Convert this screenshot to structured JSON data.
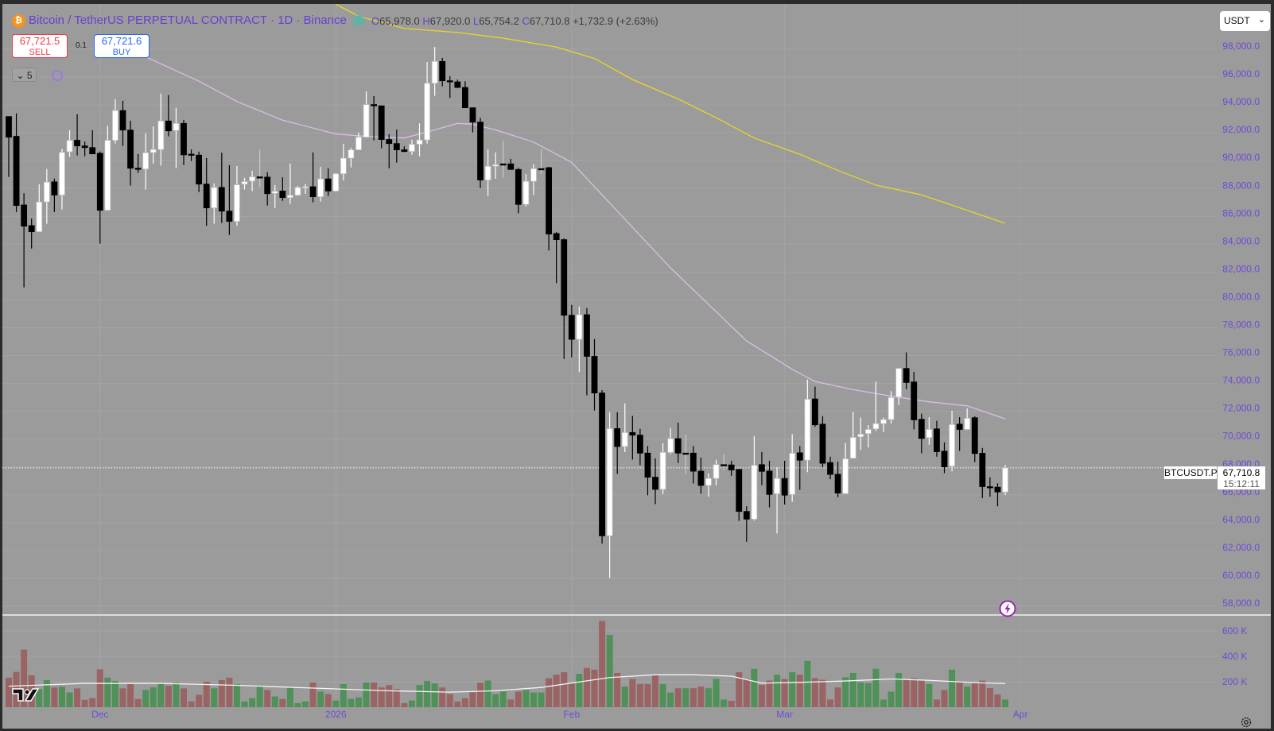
{
  "header": {
    "symbol_icon": "bitcoin-icon",
    "title": "Bitcoin / TetherUS PERPETUAL CONTRACT · 1D · Binance",
    "ohlc": {
      "o_label": "O",
      "o": "65,978.0",
      "h_label": "H",
      "h": "67,920.0",
      "l_label": "L",
      "l": "65,754.2",
      "c_label": "C",
      "c": "67,710.8",
      "change": "+1,732.9 (+2.63%)"
    },
    "sell": {
      "price": "67,721.5",
      "label": "SELL"
    },
    "buy": {
      "price": "67,721.6",
      "label": "BUY"
    },
    "quantity": "0.1",
    "collapse_label": "5",
    "currency": "USDT"
  },
  "last_price": {
    "symbol": "BTCUSDT.P",
    "price": "67,710.8",
    "countdown": "15:12:11",
    "value": 67710.8
  },
  "colors": {
    "background": "#9b9b9b",
    "axis_text": "#6f4bd6",
    "up_candle": "#ffffff",
    "down_candle": "#000000",
    "volume_up": "#4f9158",
    "volume_down": "#9a6464",
    "ma_fast": "#dcbde6",
    "ma_slow": "#e9d52a",
    "volume_ma": "#f4f4f4",
    "sell": "#f23645",
    "buy": "#2962ff"
  },
  "chart_data": {
    "type": "candlestick",
    "timeframe": "1D",
    "price_ticks": [
      "98,000.0",
      "96,000.0",
      "94,000.0",
      "92,000.0",
      "90,000.0",
      "88,000.0",
      "86,000.0",
      "84,000.0",
      "82,000.0",
      "80,000.0",
      "78,000.0",
      "76,000.0",
      "74,000.0",
      "72,000.0",
      "70,000.0",
      "68,000.0",
      "66,000.0",
      "64,000.0",
      "62,000.0",
      "60,000.0",
      "58,000.0"
    ],
    "price_tick_values": [
      98000,
      96000,
      94000,
      92000,
      90000,
      88000,
      86000,
      84000,
      82000,
      80000,
      78000,
      76000,
      74000,
      72000,
      70000,
      68000,
      66000,
      64000,
      62000,
      60000,
      58000
    ],
    "volume_ticks": [
      "600 K",
      "400 K",
      "200 K"
    ],
    "volume_tick_values": [
      600000,
      400000,
      200000
    ],
    "time_ticks": [
      {
        "label": "Dec",
        "date": "2025-12-01"
      },
      {
        "label": "2026",
        "date": "2026-01-01"
      },
      {
        "label": "Feb",
        "date": "2026-02-01"
      },
      {
        "label": "Mar",
        "date": "2026-03-01"
      },
      {
        "label": "Apr",
        "date": "2026-04-01"
      }
    ],
    "dates": [
      "2025-11-19",
      "2025-11-20",
      "2025-11-21",
      "2025-11-22",
      "2025-11-23",
      "2025-11-24",
      "2025-11-25",
      "2025-11-26",
      "2025-11-27",
      "2025-11-28",
      "2025-11-29",
      "2025-11-30",
      "2025-12-01",
      "2025-12-02",
      "2025-12-03",
      "2025-12-04",
      "2025-12-05",
      "2025-12-06",
      "2025-12-07",
      "2025-12-08",
      "2025-12-09",
      "2025-12-10",
      "2025-12-11",
      "2025-12-12",
      "2025-12-13",
      "2025-12-14",
      "2025-12-15",
      "2025-12-16",
      "2025-12-17",
      "2025-12-18",
      "2025-12-19",
      "2025-12-20",
      "2025-12-21",
      "2025-12-22",
      "2025-12-23",
      "2025-12-24",
      "2025-12-25",
      "2025-12-26",
      "2025-12-27",
      "2025-12-28",
      "2025-12-29",
      "2025-12-30",
      "2025-12-31",
      "2026-01-01",
      "2026-01-02",
      "2026-01-03",
      "2026-01-04",
      "2026-01-05",
      "2026-01-06",
      "2026-01-07",
      "2026-01-08",
      "2026-01-09",
      "2026-01-10",
      "2026-01-11",
      "2026-01-12",
      "2026-01-13",
      "2026-01-14",
      "2026-01-15",
      "2026-01-16",
      "2026-01-17",
      "2026-01-18",
      "2026-01-19",
      "2026-01-20",
      "2026-01-21",
      "2026-01-22",
      "2026-01-23",
      "2026-01-24",
      "2026-01-25",
      "2026-01-26",
      "2026-01-27",
      "2026-01-28",
      "2026-01-29",
      "2026-01-30",
      "2026-01-31",
      "2026-02-01",
      "2026-02-02",
      "2026-02-03",
      "2026-02-04",
      "2026-02-05",
      "2026-02-06",
      "2026-02-07",
      "2026-02-08",
      "2026-02-09",
      "2026-02-10",
      "2026-02-11",
      "2026-02-12",
      "2026-02-13",
      "2026-02-14",
      "2026-02-15",
      "2026-02-16",
      "2026-02-17",
      "2026-02-18",
      "2026-02-19",
      "2026-02-20",
      "2026-02-21",
      "2026-02-22",
      "2026-02-23",
      "2026-02-24",
      "2026-02-25",
      "2026-02-26",
      "2026-02-27",
      "2026-02-28",
      "2026-03-01",
      "2026-03-02",
      "2026-03-03",
      "2026-03-04",
      "2026-03-05",
      "2026-03-06",
      "2026-03-07",
      "2026-03-08",
      "2026-03-09",
      "2026-03-10",
      "2026-03-11",
      "2026-03-12",
      "2026-03-13",
      "2026-03-14",
      "2026-03-15",
      "2026-03-16",
      "2026-03-17",
      "2026-03-18",
      "2026-03-19",
      "2026-03-20",
      "2026-03-21",
      "2026-03-22",
      "2026-03-23",
      "2026-03-24",
      "2026-03-25",
      "2026-03-26",
      "2026-03-27",
      "2026-03-28",
      "2026-03-29",
      "2026-03-30"
    ],
    "open": [
      92940,
      91520,
      86590,
      85110,
      84670,
      86810,
      88250,
      87300,
      90410,
      91240,
      90830,
      90710,
      90300,
      86210,
      91230,
      93370,
      91970,
      89230,
      89170,
      90360,
      90570,
      92620,
      91940,
      92450,
      90240,
      90170,
      88090,
      86380,
      87850,
      86150,
      85410,
      88080,
      88300,
      88610,
      88590,
      87420,
      87590,
      87120,
      87290,
      87810,
      87900,
      87180,
      88460,
      87590,
      88830,
      89950,
      90550,
      91460,
      93800,
      93710,
      91290,
      91000,
      90550,
      90430,
      90950,
      91260,
      95330,
      96900,
      95510,
      95430,
      95030,
      93570,
      92540,
      88380,
      89370,
      89540,
      89540,
      89140,
      86630,
      88290,
      89200,
      89270,
      84540,
      84100,
      78670,
      76940,
      78710,
      75720,
      73090,
      62830,
      70530,
      69240,
      70250,
      70060,
      68770,
      67040,
      66170,
      68820,
      69810,
      68770,
      68770,
      67470,
      66450,
      66950,
      67940,
      67920,
      67600,
      64580,
      64030,
      67940,
      67480,
      65850,
      66950,
      65800,
      68790,
      68260,
      72660,
      70850,
      68090,
      67250,
      65860,
      68400,
      69940,
      70170,
      70510,
      70890,
      71180,
      72800,
      74850,
      73880,
      71200,
      69880,
      70510,
      68910,
      67840,
      70850,
      70470,
      71310,
      68760,
      66360,
      66320,
      65978
    ],
    "high": [
      92940,
      93170,
      87430,
      85620,
      88080,
      89170,
      88480,
      90620,
      91960,
      93110,
      91150,
      91960,
      90430,
      92280,
      94190,
      94070,
      92640,
      90250,
      91730,
      92240,
      94590,
      94480,
      93570,
      92700,
      90570,
      90420,
      89960,
      88140,
      90340,
      89450,
      89390,
      88540,
      89050,
      90570,
      88940,
      88020,
      88580,
      89560,
      87960,
      88100,
      90360,
      89330,
      89220,
      88890,
      90990,
      90690,
      91790,
      94750,
      94410,
      93710,
      91680,
      92000,
      90800,
      91280,
      92450,
      96860,
      97940,
      97150,
      95840,
      95590,
      95470,
      93570,
      92850,
      90590,
      90360,
      91210,
      89900,
      89260,
      88820,
      89520,
      90590,
      89330,
      84650,
      84190,
      79410,
      79290,
      79180,
      76960,
      73290,
      71710,
      71710,
      72340,
      71440,
      70510,
      69280,
      68390,
      69490,
      70570,
      70960,
      70100,
      69280,
      68450,
      67300,
      68290,
      68680,
      68220,
      67600,
      64950,
      70000,
      68850,
      68220,
      67750,
      68220,
      70130,
      69270,
      74050,
      73540,
      71420,
      68510,
      68150,
      69500,
      71730,
      71320,
      70780,
      73890,
      71320,
      73220,
      74890,
      76000,
      74610,
      71600,
      71350,
      71090,
      69540,
      71810,
      71350,
      71980,
      71410,
      69140,
      67030,
      66600,
      67920
    ],
    "low": [
      88600,
      86090,
      80670,
      83460,
      84670,
      85240,
      86090,
      86270,
      90030,
      90150,
      90090,
      90260,
      83820,
      86200,
      91000,
      90830,
      87980,
      88890,
      87700,
      89560,
      89410,
      91520,
      89230,
      89460,
      89740,
      87520,
      85090,
      85240,
      85290,
      84440,
      85090,
      87700,
      87580,
      87870,
      86550,
      86380,
      86890,
      86660,
      87240,
      87390,
      86780,
      86840,
      87240,
      87530,
      88350,
      89290,
      90550,
      91480,
      91230,
      90660,
      89230,
      89630,
      90380,
      90190,
      90090,
      91000,
      94430,
      95110,
      94280,
      94990,
      93570,
      91800,
      87810,
      87240,
      88470,
      88550,
      89140,
      86000,
      86480,
      87300,
      88820,
      83320,
      80970,
      75530,
      75650,
      74590,
      72920,
      71830,
      62270,
      59800,
      67270,
      68840,
      68300,
      67900,
      65740,
      65110,
      65830,
      68690,
      68060,
      67270,
      66580,
      65860,
      65640,
      66450,
      67510,
      67140,
      63900,
      62410,
      63920,
      66470,
      64870,
      62990,
      65080,
      65270,
      66130,
      67400,
      70660,
      67750,
      66890,
      65610,
      65860,
      68400,
      68990,
      69170,
      70360,
      70280,
      70890,
      72220,
      73360,
      70470,
      68760,
      69370,
      68510,
      67330,
      67460,
      68930,
      70420,
      68130,
      65540,
      65630,
      64950,
      65754.2
    ],
    "close": [
      91460,
      86550,
      85070,
      84670,
      86810,
      88230,
      87300,
      90370,
      91230,
      90830,
      90710,
      90260,
      86210,
      91230,
      93370,
      91970,
      89230,
      89170,
      90340,
      90570,
      92620,
      91910,
      92450,
      90190,
      90200,
      88090,
      86380,
      87850,
      86150,
      85410,
      88040,
      88270,
      88610,
      88610,
      87400,
      87570,
      87120,
      87290,
      87850,
      87900,
      87180,
      88460,
      87590,
      88830,
      89950,
      90550,
      91460,
      93800,
      93710,
      91290,
      91000,
      90550,
      90430,
      90950,
      91260,
      95330,
      96900,
      95510,
      95430,
      95030,
      93570,
      92540,
      88380,
      89370,
      89480,
      89540,
      89140,
      86630,
      88290,
      89200,
      89200,
      84500,
      84100,
      78670,
      76940,
      78710,
      75720,
      73090,
      62830,
      70530,
      69240,
      70250,
      70060,
      68770,
      67040,
      66170,
      68820,
      69810,
      68770,
      68770,
      67470,
      66450,
      66950,
      67940,
      67940,
      67560,
      64580,
      64030,
      67900,
      67460,
      65800,
      66950,
      65750,
      68760,
      68260,
      72640,
      70800,
      68040,
      67240,
      65900,
      68360,
      69900,
      70130,
      70470,
      70890,
      71180,
      72760,
      74850,
      73840,
      71160,
      69820,
      70470,
      68870,
      67780,
      70820,
      70470,
      71270,
      68740,
      66360,
      66320,
      65980,
      67710.8
    ],
    "volume": [
      232000,
      277000,
      452000,
      250000,
      142000,
      213000,
      155000,
      161000,
      116000,
      148000,
      58000,
      71000,
      297000,
      232000,
      206000,
      148000,
      181000,
      65000,
      135000,
      155000,
      187000,
      168000,
      194000,
      148000,
      45000,
      97000,
      200000,
      148000,
      213000,
      232000,
      181000,
      45000,
      71000,
      161000,
      135000,
      84000,
      65000,
      155000,
      32000,
      45000,
      194000,
      122000,
      103000,
      52000,
      181000,
      65000,
      77000,
      194000,
      194000,
      155000,
      174000,
      142000,
      32000,
      52000,
      174000,
      206000,
      187000,
      155000,
      103000,
      45000,
      71000,
      116000,
      191000,
      209000,
      102000,
      124000,
      60000,
      122000,
      135000,
      115000,
      115000,
      228000,
      255000,
      275000,
      189000,
      262000,
      308000,
      295000,
      677000,
      568000,
      269000,
      162000,
      222000,
      182000,
      182000,
      255000,
      182000,
      115000,
      149000,
      149000,
      149000,
      162000,
      149000,
      222000,
      60000,
      50000,
      275000,
      222000,
      302000,
      175000,
      209000,
      255000,
      222000,
      275000,
      255000,
      364000,
      228000,
      215000,
      60000,
      155000,
      235000,
      269000,
      195000,
      189000,
      302000,
      60000,
      122000,
      269000,
      215000,
      228000,
      215000,
      182000,
      60000,
      135000,
      295000,
      195000,
      162000,
      189000,
      209000,
      150000,
      100000,
      60000
    ],
    "ma_fast": [
      [
        15,
        97985
      ],
      [
        18,
        97228
      ],
      [
        25,
        95479
      ],
      [
        30,
        94022
      ],
      [
        36,
        92681
      ],
      [
        43,
        91690
      ],
      [
        47,
        91515
      ],
      [
        52,
        91399
      ],
      [
        56,
        91982
      ],
      [
        59,
        92448
      ],
      [
        61,
        92390
      ],
      [
        64,
        91982
      ],
      [
        69,
        91107
      ],
      [
        74,
        89650
      ],
      [
        78,
        87318
      ],
      [
        82,
        84986
      ],
      [
        87,
        82072
      ],
      [
        92,
        79449
      ],
      [
        97,
        76826
      ],
      [
        103,
        74786
      ],
      [
        106,
        73912
      ],
      [
        111,
        73329
      ],
      [
        116,
        72863
      ],
      [
        121,
        72455
      ],
      [
        126,
        72163
      ],
      [
        131,
        71230
      ]
    ],
    "ma_slow": [
      [
        43,
        101017
      ],
      [
        46,
        100142
      ],
      [
        52,
        99268
      ],
      [
        59,
        98976
      ],
      [
        65,
        98568
      ],
      [
        72,
        97927
      ],
      [
        77,
        97111
      ],
      [
        82,
        95596
      ],
      [
        88,
        94197
      ],
      [
        93,
        92856
      ],
      [
        98,
        91399
      ],
      [
        104,
        90233
      ],
      [
        109,
        89067
      ],
      [
        114,
        88018
      ],
      [
        120,
        87318
      ],
      [
        125,
        86386
      ],
      [
        131,
        85278
      ]
    ],
    "volume_ma": [
      [
        0,
        165000
      ],
      [
        10,
        187000
      ],
      [
        20,
        187000
      ],
      [
        30,
        172000
      ],
      [
        40,
        150000
      ],
      [
        50,
        129000
      ],
      [
        58,
        118000
      ],
      [
        64,
        129000
      ],
      [
        70,
        155000
      ],
      [
        79,
        233000
      ],
      [
        85,
        255000
      ],
      [
        90,
        255000
      ],
      [
        95,
        244000
      ],
      [
        99,
        189000
      ],
      [
        104,
        195000
      ],
      [
        110,
        206000
      ],
      [
        116,
        222000
      ],
      [
        121,
        211000
      ],
      [
        127,
        193000
      ],
      [
        131,
        185000
      ]
    ],
    "grid": true
  },
  "icons": {
    "bottom_right": "gear-icon",
    "bottom_left": "tradingview-logo",
    "alert": "lightning-icon"
  }
}
